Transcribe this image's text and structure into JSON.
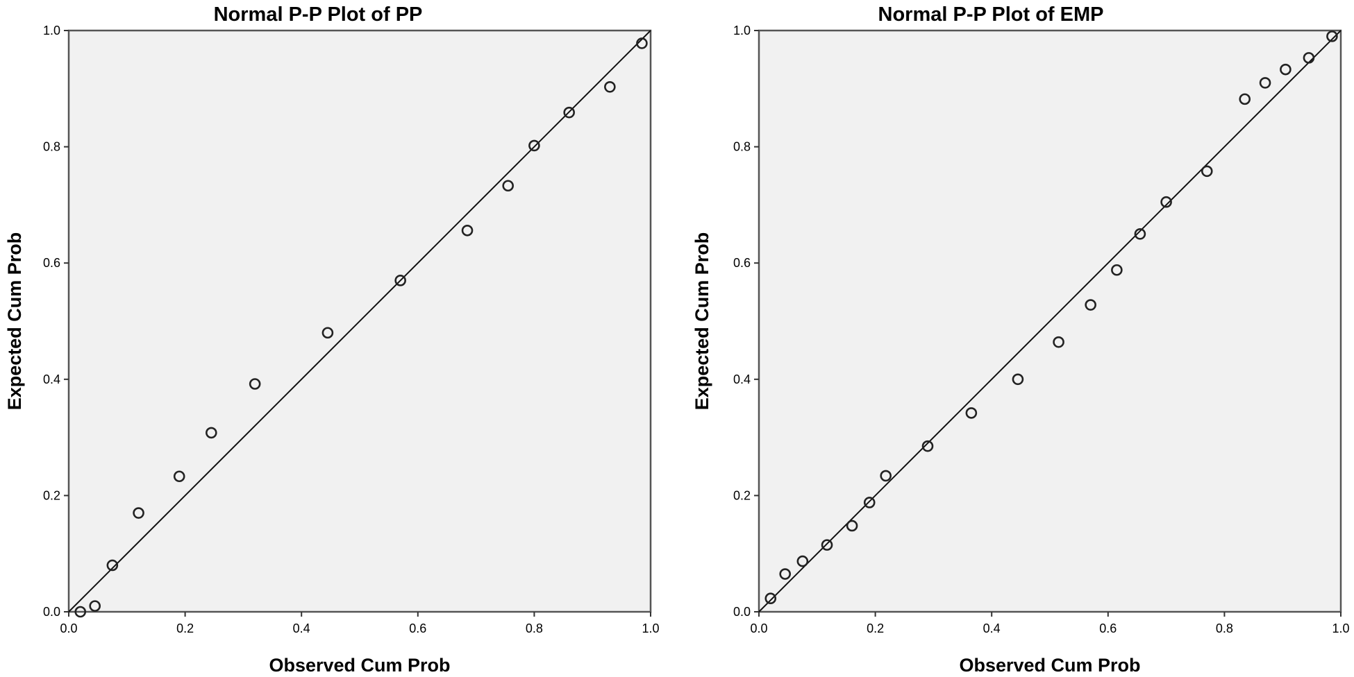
{
  "chart_data": [
    {
      "type": "scatter",
      "title": "Normal P-P Plot of PP",
      "xlabel": "Observed Cum Prob",
      "ylabel": "Expected Cum Prob",
      "xlim": [
        0,
        1
      ],
      "ylim": [
        0,
        1
      ],
      "xticks": [
        "0.0",
        "0.2",
        "0.4",
        "0.6",
        "0.8",
        "1.0"
      ],
      "yticks": [
        "0.0",
        "0.2",
        "0.4",
        "0.6",
        "0.8",
        "1.0"
      ],
      "reference_line": [
        [
          0,
          0
        ],
        [
          1,
          1
        ]
      ],
      "grid": false,
      "points": [
        {
          "x": 0.02,
          "y": 0.0
        },
        {
          "x": 0.045,
          "y": 0.01
        },
        {
          "x": 0.075,
          "y": 0.08
        },
        {
          "x": 0.12,
          "y": 0.17
        },
        {
          "x": 0.19,
          "y": 0.233
        },
        {
          "x": 0.245,
          "y": 0.308
        },
        {
          "x": 0.32,
          "y": 0.392
        },
        {
          "x": 0.445,
          "y": 0.48
        },
        {
          "x": 0.57,
          "y": 0.57
        },
        {
          "x": 0.685,
          "y": 0.656
        },
        {
          "x": 0.755,
          "y": 0.733
        },
        {
          "x": 0.8,
          "y": 0.802
        },
        {
          "x": 0.86,
          "y": 0.859
        },
        {
          "x": 0.93,
          "y": 0.903
        },
        {
          "x": 0.985,
          "y": 0.978
        }
      ]
    },
    {
      "type": "scatter",
      "title": "Normal P-P Plot of EMP",
      "xlabel": "Observed Cum Prob",
      "ylabel": "Expected Cum Prob",
      "xlim": [
        0,
        1
      ],
      "ylim": [
        0,
        1
      ],
      "xticks": [
        "0.0",
        "0.2",
        "0.4",
        "0.6",
        "0.8",
        "1.0"
      ],
      "yticks": [
        "0.0",
        "0.2",
        "0.4",
        "0.6",
        "0.8",
        "1.0"
      ],
      "reference_line": [
        [
          0,
          0
        ],
        [
          1,
          1
        ]
      ],
      "grid": false,
      "points": [
        {
          "x": 0.02,
          "y": 0.023
        },
        {
          "x": 0.045,
          "y": 0.065
        },
        {
          "x": 0.075,
          "y": 0.087
        },
        {
          "x": 0.117,
          "y": 0.115
        },
        {
          "x": 0.16,
          "y": 0.148
        },
        {
          "x": 0.19,
          "y": 0.188
        },
        {
          "x": 0.218,
          "y": 0.234
        },
        {
          "x": 0.29,
          "y": 0.285
        },
        {
          "x": 0.365,
          "y": 0.342
        },
        {
          "x": 0.445,
          "y": 0.4
        },
        {
          "x": 0.515,
          "y": 0.464
        },
        {
          "x": 0.57,
          "y": 0.528
        },
        {
          "x": 0.615,
          "y": 0.588
        },
        {
          "x": 0.655,
          "y": 0.65
        },
        {
          "x": 0.7,
          "y": 0.705
        },
        {
          "x": 0.77,
          "y": 0.758
        },
        {
          "x": 0.835,
          "y": 0.882
        },
        {
          "x": 0.87,
          "y": 0.91
        },
        {
          "x": 0.905,
          "y": 0.933
        },
        {
          "x": 0.945,
          "y": 0.953
        },
        {
          "x": 0.985,
          "y": 0.99
        }
      ]
    }
  ]
}
